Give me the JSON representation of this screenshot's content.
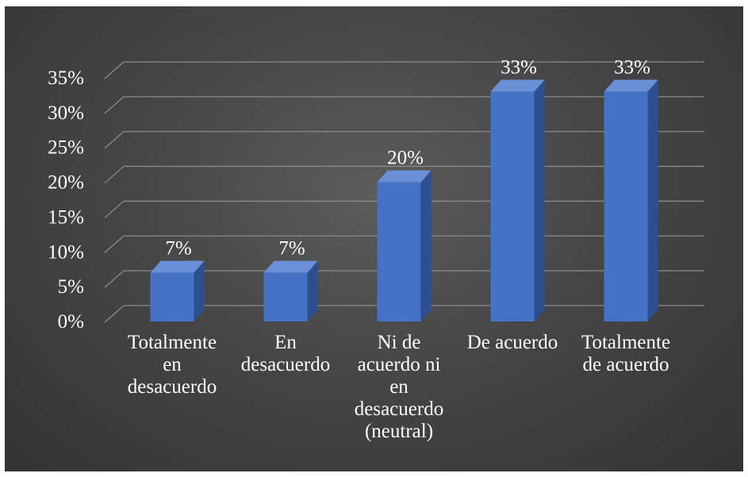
{
  "chart_data": {
    "type": "bar",
    "title": "",
    "xlabel": "",
    "ylabel": "",
    "categories": [
      [
        "Totalmente",
        "en",
        "desacuerdo"
      ],
      [
        "En",
        "desacuerdo"
      ],
      [
        "Ni de",
        "acuerdo ni",
        "en",
        "desacuerdo",
        "(neutral)"
      ],
      [
        "De acuerdo"
      ],
      [
        "Totalmente",
        "de acuerdo"
      ]
    ],
    "values": [
      7,
      7,
      20,
      33,
      33
    ],
    "data_labels": [
      "7%",
      "7%",
      "20%",
      "33%",
      "33%"
    ],
    "y_ticks": [
      "0%",
      "5%",
      "10%",
      "15%",
      "20%",
      "25%",
      "30%",
      "35%"
    ],
    "y_tick_values": [
      0,
      5,
      10,
      15,
      20,
      25,
      30,
      35
    ],
    "ylim": [
      0,
      35
    ],
    "grid": true,
    "three_d": true,
    "colors": {
      "bar_front": "#4472c4",
      "bar_side": "#2c4f8f",
      "bar_top": "#6a8fd6",
      "gridline": "#8a8a8a",
      "text": "#ffffff",
      "background": "#4a4a4a"
    }
  }
}
